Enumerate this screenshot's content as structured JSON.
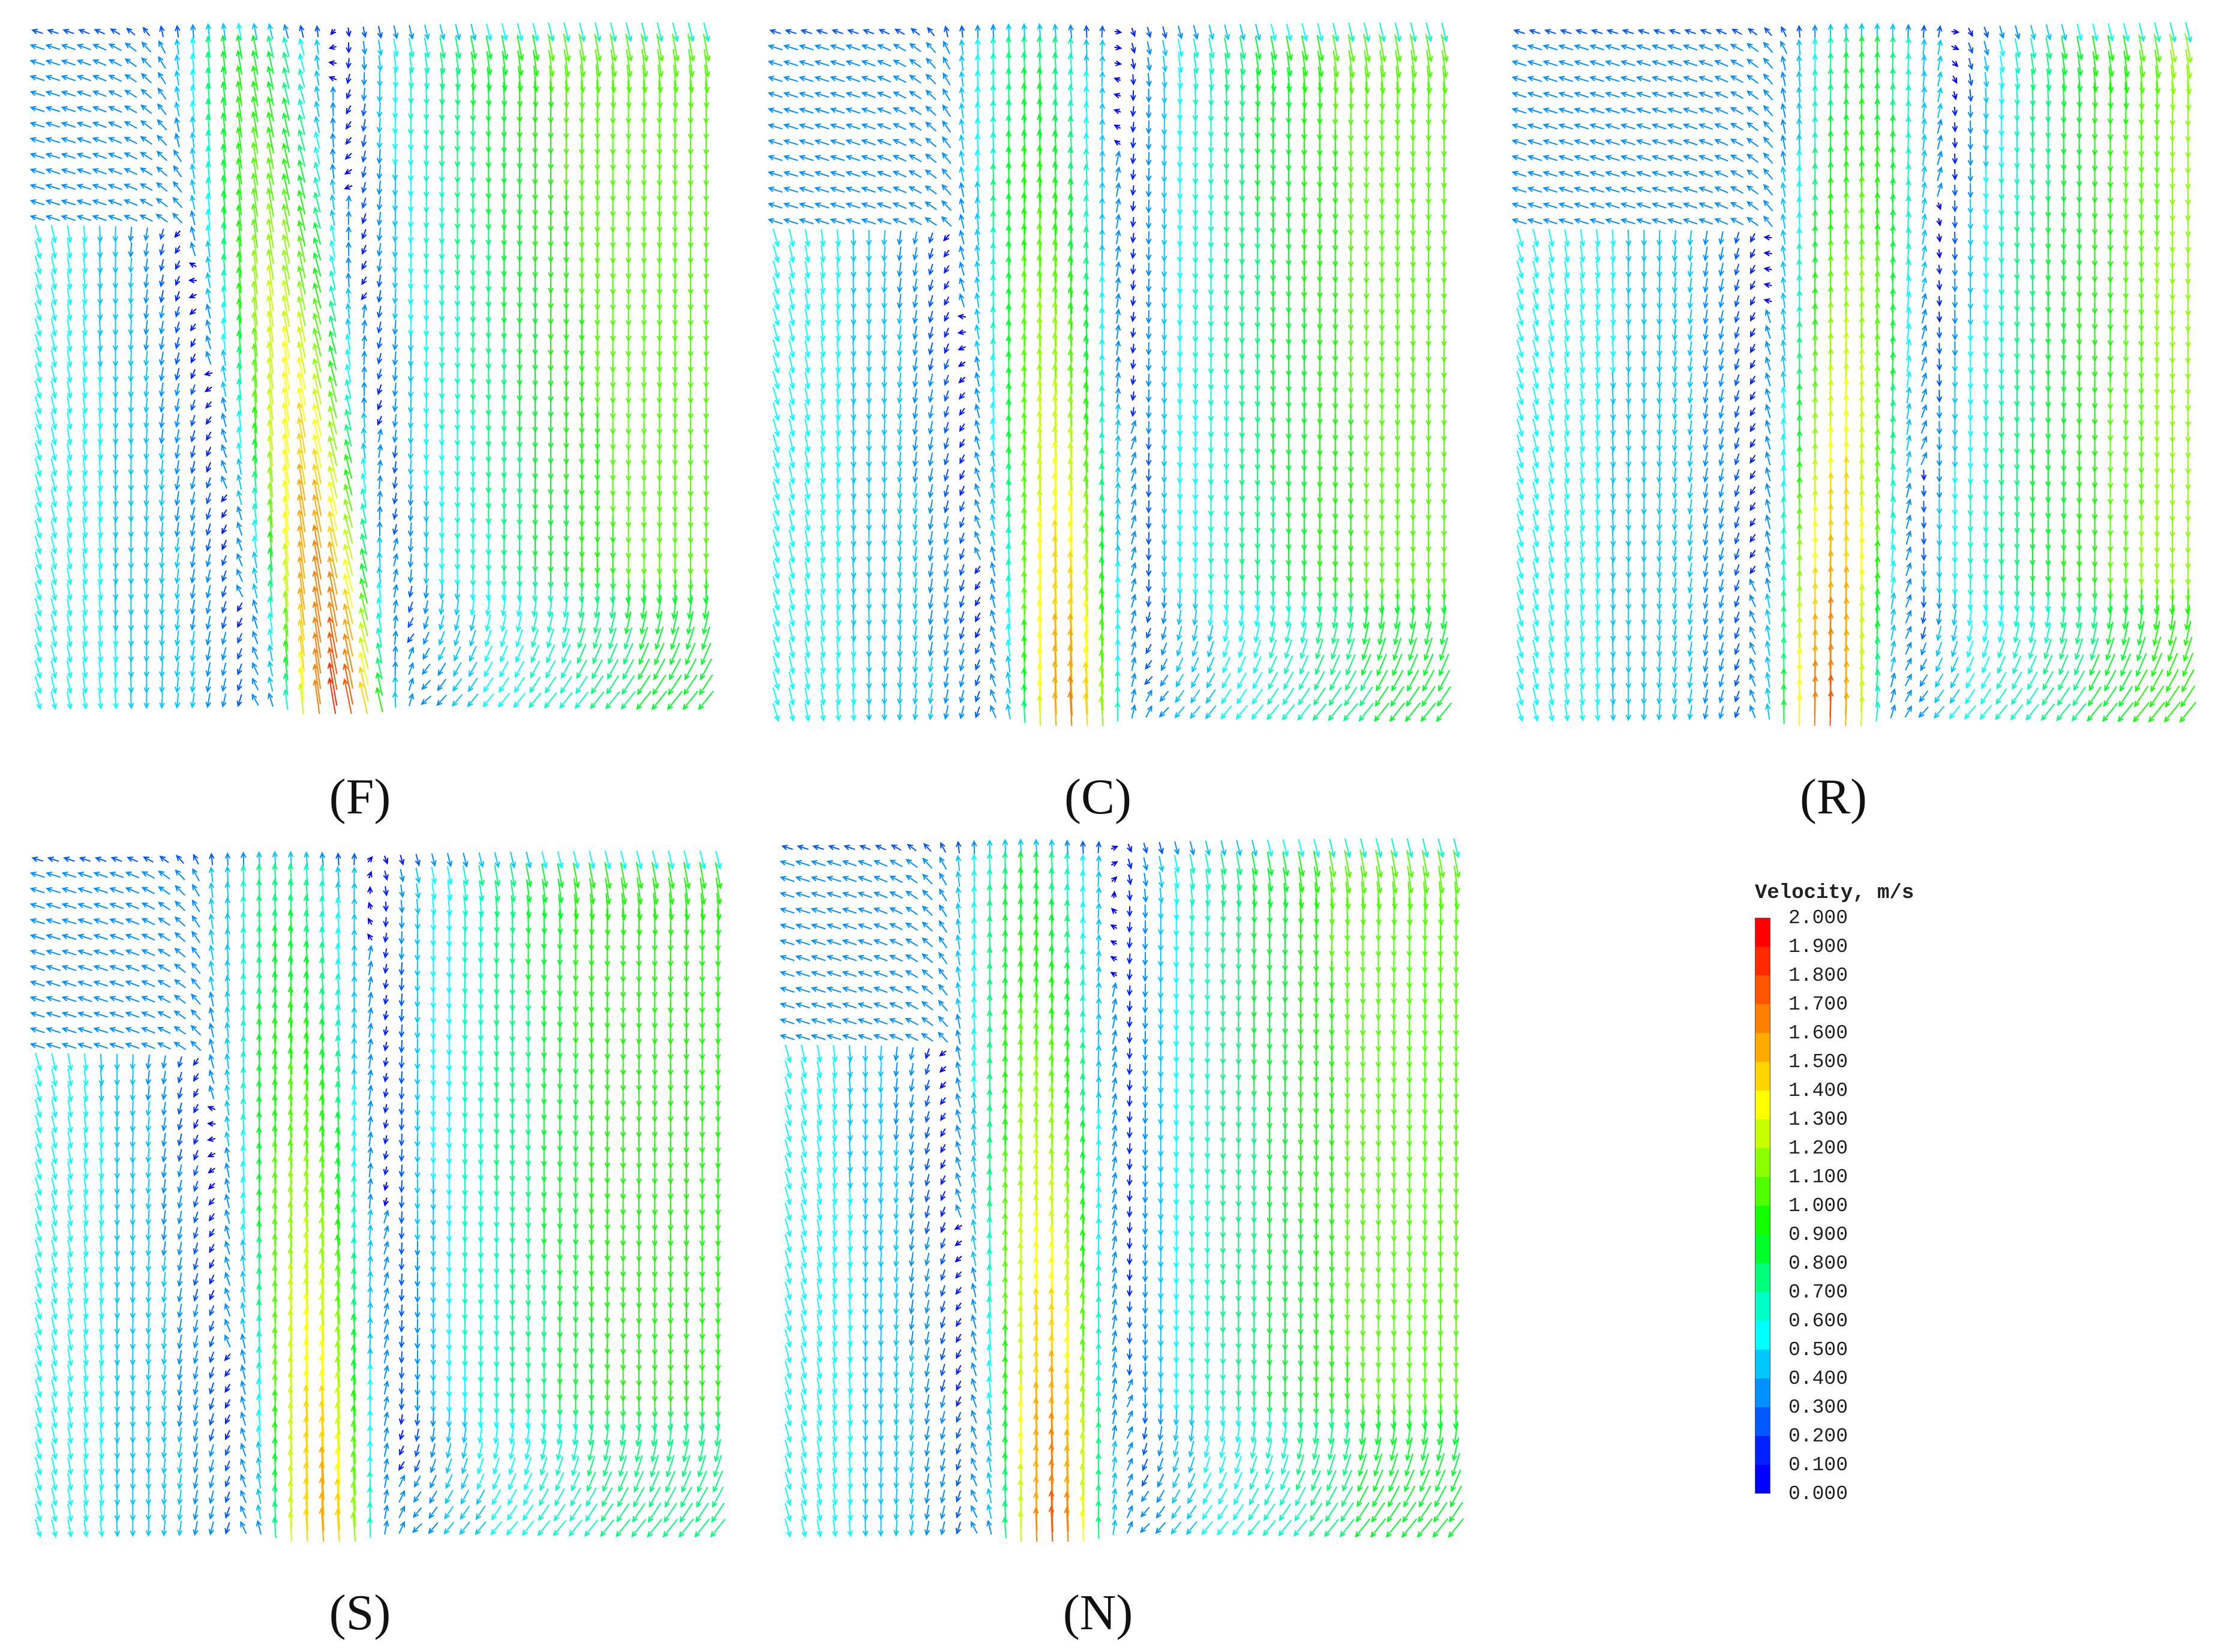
{
  "panels": [
    {
      "id": "F",
      "label": "(F)",
      "pattern": "F"
    },
    {
      "id": "C",
      "label": "(C)",
      "pattern": "C"
    },
    {
      "id": "R",
      "label": "(R)",
      "pattern": "R"
    },
    {
      "id": "S",
      "label": "(S)",
      "pattern": "S"
    },
    {
      "id": "N",
      "label": "(N)",
      "pattern": "N"
    }
  ],
  "legend": {
    "title": "Velocity, m/s",
    "min": 0.0,
    "max": 2.0,
    "ticks": [
      "2.000",
      "1.900",
      "1.800",
      "1.700",
      "1.600",
      "1.500",
      "1.400",
      "1.300",
      "1.200",
      "1.100",
      "1.000",
      "0.900",
      "0.800",
      "0.700",
      "0.600",
      "0.500",
      "0.400",
      "0.300",
      "0.200",
      "0.100",
      "0.000"
    ],
    "colors": [
      "#ff0000",
      "#ff2a00",
      "#ff5500",
      "#ff7f00",
      "#ffaa00",
      "#ffd400",
      "#ffff00",
      "#c8ff00",
      "#8cff00",
      "#50ff00",
      "#14ff00",
      "#00ff2a",
      "#00ff7a",
      "#00ffc6",
      "#00ffff",
      "#00c8ff",
      "#0090ff",
      "#0058ff",
      "#0020ff",
      "#0000ff"
    ]
  }
}
